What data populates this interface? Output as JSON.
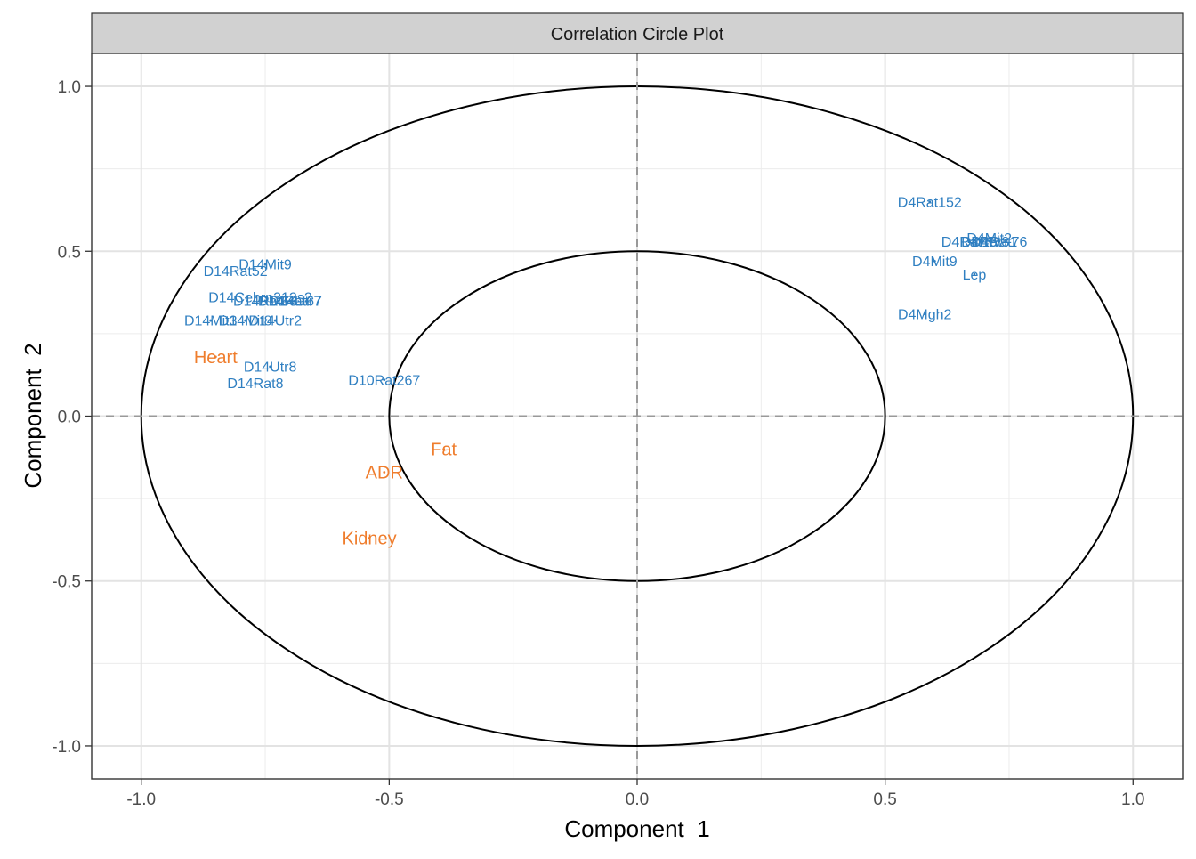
{
  "chart_data": {
    "type": "scatter",
    "title": "Correlation Circle Plot",
    "xlabel": "Component  1",
    "ylabel": "Component  2",
    "xlim": [
      -1.1,
      1.1
    ],
    "ylim": [
      -1.1,
      1.1
    ],
    "x_ticks": [
      "-1.0",
      "-0.5",
      "0.0",
      "0.5",
      "1.0"
    ],
    "y_ticks": [
      "-1.0",
      "-0.5",
      "0.0",
      "0.5",
      "1.0"
    ],
    "x_tick_values": [
      -1.0,
      -0.5,
      0.0,
      0.5,
      1.0
    ],
    "y_tick_values": [
      -1.0,
      -0.5,
      0.0,
      0.5,
      1.0
    ],
    "circles": [
      1.0,
      0.5
    ],
    "grid": true,
    "colors": {
      "block1": "#2f7fc1",
      "block2": "#ef7d2d"
    },
    "series": [
      {
        "color": "#2f7fc1",
        "points": [
          {
            "label": "D14Mit9",
            "x": -0.75,
            "y": 0.46
          },
          {
            "label": "D14Rat52",
            "x": -0.81,
            "y": 0.44
          },
          {
            "label": "D14Cebrp312s2",
            "x": -0.76,
            "y": 0.36
          },
          {
            "label": "D14Utr7",
            "x": -0.69,
            "y": 0.35
          },
          {
            "label": "D14Rat67",
            "x": -0.7,
            "y": 0.35
          },
          {
            "label": "D14Rat63",
            "x": -0.75,
            "y": 0.35
          },
          {
            "label": "D14Mit3",
            "x": -0.86,
            "y": 0.29
          },
          {
            "label": "D14Mit8",
            "x": -0.79,
            "y": 0.29
          },
          {
            "label": "D14Utr2",
            "x": -0.73,
            "y": 0.29
          },
          {
            "label": "D14Utr8",
            "x": -0.74,
            "y": 0.15
          },
          {
            "label": "D14Rat8",
            "x": -0.77,
            "y": 0.1
          },
          {
            "label": "D10Rat267",
            "x": -0.51,
            "y": 0.11
          },
          {
            "label": "D4Rat152",
            "x": 0.59,
            "y": 0.65
          },
          {
            "label": "D4Mit2",
            "x": 0.71,
            "y": 0.54
          },
          {
            "label": "D4Rat16",
            "x": 0.67,
            "y": 0.53
          },
          {
            "label": "D4Rat76",
            "x": 0.73,
            "y": 0.53
          },
          {
            "label": "D4Rat81",
            "x": 0.71,
            "y": 0.53
          },
          {
            "label": "D4Mit9",
            "x": 0.6,
            "y": 0.47
          },
          {
            "label": "Lep",
            "x": 0.68,
            "y": 0.43
          },
          {
            "label": "D4Mgh2",
            "x": 0.58,
            "y": 0.31
          }
        ]
      },
      {
        "color": "#ef7d2d",
        "points": [
          {
            "label": "Heart",
            "x": -0.85,
            "y": 0.18
          },
          {
            "label": "Fat",
            "x": -0.39,
            "y": -0.1
          },
          {
            "label": "ADR",
            "x": -0.51,
            "y": -0.17
          },
          {
            "label": "Kidney",
            "x": -0.54,
            "y": -0.37
          }
        ]
      }
    ]
  }
}
